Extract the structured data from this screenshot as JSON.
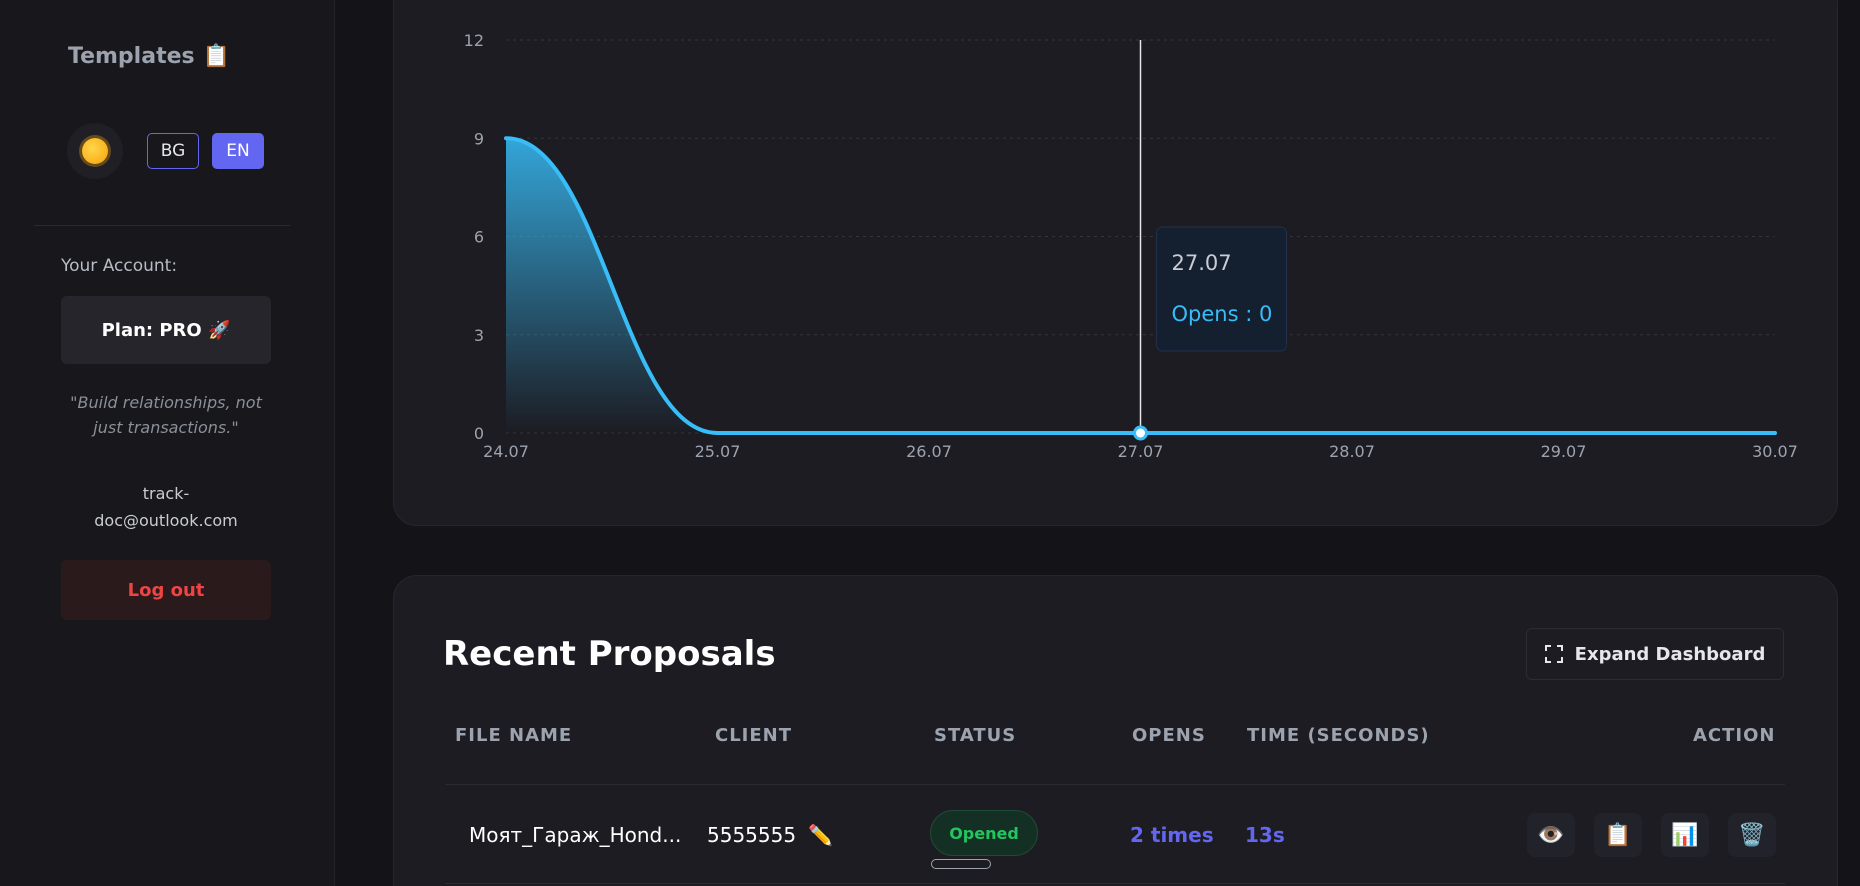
{
  "sidebar": {
    "templates_label": "Templates",
    "templates_icon": "📋",
    "theme_icon": "sun-icon",
    "languages": [
      "BG",
      "EN"
    ],
    "active_language": "EN",
    "account_label": "Your Account:",
    "plan_label": "Plan: PRO 🚀",
    "quote": "\"Build relationships, not just transactions.\"",
    "email_line1": "track-",
    "email_line2": "doc@outlook.com",
    "logout_label": "Log out"
  },
  "chart_data": {
    "type": "area",
    "x": [
      "24.07",
      "25.07",
      "26.07",
      "27.07",
      "28.07",
      "29.07",
      "30.07"
    ],
    "series": [
      {
        "name": "Opens",
        "values": [
          9,
          0,
          0,
          0,
          0,
          0,
          0
        ],
        "color": "#38bdf8"
      }
    ],
    "yticks": [
      0,
      3,
      6,
      9,
      12
    ],
    "ylim": [
      0,
      12
    ],
    "grid": true,
    "tooltip": {
      "x": "27.07",
      "label": "Opens : 0"
    }
  },
  "proposals": {
    "title": "Recent Proposals",
    "expand_label": "Expand Dashboard",
    "columns": {
      "file": "FILE NAME",
      "client": "CLIENT",
      "status": "STATUS",
      "opens": "OPENS",
      "time": "TIME (SECONDS)",
      "action": "ACTION"
    },
    "rows": [
      {
        "file": "Моят_Гараж_Hond...",
        "client": "5555555",
        "status": "Opened",
        "opens": "2 times",
        "time": "13s",
        "actions": [
          "eye-icon",
          "clipboard-icon",
          "chart-icon",
          "trash-icon"
        ]
      }
    ]
  },
  "colors": {
    "accent": "#6366f1",
    "chart_line": "#38bdf8",
    "status_green": "#22c55e",
    "logout_red": "#ef4444"
  }
}
